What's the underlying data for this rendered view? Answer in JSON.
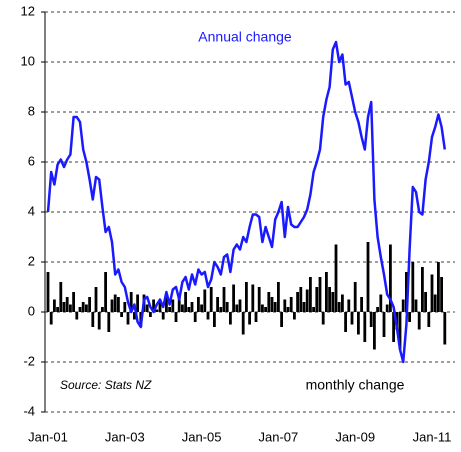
{
  "chart_data": {
    "type": "bar",
    "annotations": [
      "Annual change",
      "Source: Stats NZ",
      "monthly change"
    ],
    "categories": [
      "Jan-01",
      null,
      null,
      null,
      null,
      null,
      null,
      null,
      null,
      null,
      null,
      null,
      null,
      null,
      null,
      null,
      null,
      null,
      null,
      null,
      null,
      null,
      null,
      null,
      "Jan-03",
      null,
      null,
      null,
      null,
      null,
      null,
      null,
      null,
      null,
      null,
      null,
      null,
      null,
      null,
      null,
      null,
      null,
      null,
      null,
      null,
      null,
      null,
      null,
      "Jan-05",
      null,
      null,
      null,
      null,
      null,
      null,
      null,
      null,
      null,
      null,
      null,
      null,
      null,
      null,
      null,
      null,
      null,
      null,
      null,
      null,
      null,
      null,
      null,
      "Jan-07",
      null,
      null,
      null,
      null,
      null,
      null,
      null,
      null,
      null,
      null,
      null,
      null,
      null,
      null,
      null,
      null,
      null,
      null,
      null,
      null,
      null,
      null,
      null,
      "Jan-09",
      null,
      null,
      null,
      null,
      null,
      null,
      null,
      null,
      null,
      null,
      null,
      null,
      null,
      null,
      null,
      null,
      null,
      null,
      null,
      null,
      null,
      null,
      null,
      "Jan-11",
      null,
      null,
      null,
      null
    ],
    "series": [
      {
        "name": "monthly change",
        "type": "bar",
        "color": "#000000",
        "values": [
          1.6,
          -0.5,
          0.5,
          0.2,
          1.2,
          0.4,
          0.6,
          0.3,
          0.8,
          -0.3,
          0.2,
          0.4,
          0.3,
          0.6,
          -0.6,
          1.0,
          -0.7,
          0.2,
          1.6,
          -0.8,
          0.5,
          0.7,
          0.6,
          -0.2,
          0.4,
          -0.5,
          0.8,
          -0.3,
          0.7,
          -0.6,
          0.7,
          0.3,
          -0.2,
          0.5,
          0.1,
          0.4,
          -0.3,
          0.7,
          0.2,
          0.5,
          -0.4,
          0.6,
          0.3,
          0.8,
          0.2,
          0.4,
          -0.4,
          0.6,
          0.3,
          0.9,
          -0.3,
          1.0,
          -0.6,
          0.6,
          0.2,
          1.0,
          0.4,
          -0.5,
          1.1,
          0.3,
          0.5,
          -0.9,
          1.2,
          -0.5,
          1.1,
          -0.4,
          1.0,
          0.3,
          0.2,
          0.8,
          0.6,
          0.4,
          1.2,
          -0.6,
          0.5,
          0.2,
          0.6,
          -0.3,
          0.8,
          1.0,
          0.4,
          0.9,
          1.4,
          0.2,
          1.0,
          1.4,
          -0.5,
          1.6,
          1.0,
          0.8,
          2.7,
          0.4,
          0.7,
          -0.8,
          0.5,
          -0.5,
          1.2,
          -0.9,
          0.6,
          -1.2,
          2.8,
          -0.6,
          -1.5,
          0.2,
          0.7,
          -1.0,
          0.3,
          2.7,
          -1.2,
          -0.7,
          -1.5,
          0.5,
          1.6,
          -0.4,
          2.0,
          0.5,
          -0.7,
          1.8,
          0.8,
          -0.6,
          1.5,
          0.7,
          2.0,
          1.4,
          -1.3
        ]
      },
      {
        "name": "Annual change",
        "type": "line",
        "color": "#1a1aff",
        "values": [
          4.0,
          5.6,
          5.1,
          5.9,
          6.1,
          5.8,
          6.1,
          6.3,
          7.8,
          7.8,
          7.6,
          6.5,
          6.0,
          5.3,
          4.5,
          5.4,
          5.3,
          4.2,
          3.2,
          3.4,
          2.8,
          1.5,
          1.7,
          1.2,
          1.0,
          0.4,
          0.0,
          0.3,
          -0.4,
          -0.6,
          0.5,
          0.6,
          0.2,
          0.0,
          0.3,
          0.5,
          0.2,
          0.8,
          0.3,
          0.9,
          1.0,
          0.5,
          1.2,
          1.4,
          0.9,
          1.5,
          1.1,
          1.7,
          1.5,
          1.6,
          1.0,
          1.3,
          2.0,
          1.8,
          1.5,
          2.2,
          2.3,
          1.6,
          2.5,
          2.7,
          2.5,
          3.0,
          2.8,
          3.4,
          3.9,
          3.9,
          3.8,
          2.8,
          3.4,
          3.0,
          2.6,
          3.7,
          4.0,
          4.4,
          3.0,
          4.2,
          3.5,
          3.4,
          3.4,
          3.6,
          3.8,
          4.1,
          4.7,
          5.6,
          6.0,
          6.5,
          7.8,
          8.5,
          9.0,
          10.5,
          10.8,
          10.0,
          10.3,
          9.1,
          9.2,
          8.6,
          8.0,
          7.6,
          7.0,
          6.5,
          7.8,
          8.4,
          4.5,
          3.0,
          2.2,
          1.5,
          0.7,
          0.5,
          0.2,
          -0.6,
          -1.5,
          -2.0,
          -0.5,
          2.5,
          5.0,
          4.8,
          4.0,
          3.9,
          5.3,
          6.0,
          7.0,
          7.4,
          7.9,
          7.4,
          6.5
        ]
      }
    ],
    "ylim": [
      -4,
      12
    ],
    "yticks": [
      -4,
      -2,
      0,
      2,
      4,
      6,
      8,
      10,
      12
    ],
    "grid": true
  }
}
